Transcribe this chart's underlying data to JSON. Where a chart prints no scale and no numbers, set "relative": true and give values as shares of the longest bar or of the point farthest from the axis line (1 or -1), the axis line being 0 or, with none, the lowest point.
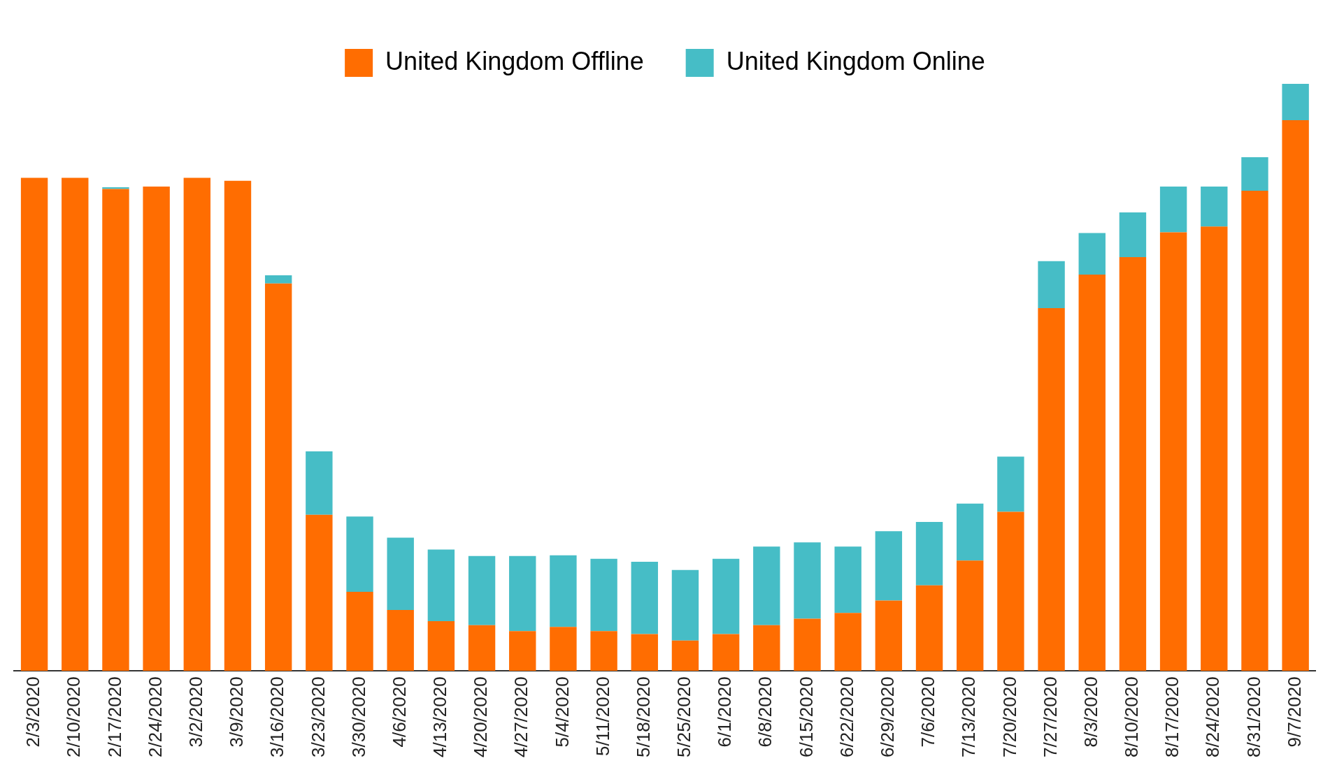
{
  "chart_data": {
    "type": "bar",
    "stacked": true,
    "relative": true,
    "legend": "top",
    "categories": [
      "2/3/2020",
      "2/10/2020",
      "2/17/2020",
      "2/24/2020",
      "3/2/2020",
      "3/9/2020",
      "3/16/2020",
      "3/23/2020",
      "3/30/2020",
      "4/6/2020",
      "4/13/2020",
      "4/20/2020",
      "4/27/2020",
      "5/4/2020",
      "5/11/2020",
      "5/18/2020",
      "5/25/2020",
      "6/1/2020",
      "6/8/2020",
      "6/15/2020",
      "6/22/2020",
      "6/29/2020",
      "7/6/2020",
      "7/13/2020",
      "7/20/2020",
      "7/27/2020",
      "8/3/2020",
      "8/10/2020",
      "8/17/2020",
      "8/24/2020",
      "8/31/2020",
      "9/7/2020"
    ],
    "series": [
      {
        "name": "United Kingdom Offline",
        "color": "#ff6d01",
        "values": [
          0.84,
          0.84,
          0.821,
          0.825,
          0.84,
          0.835,
          0.66,
          0.266,
          0.135,
          0.104,
          0.085,
          0.078,
          0.068,
          0.075,
          0.068,
          0.063,
          0.052,
          0.063,
          0.078,
          0.089,
          0.099,
          0.12,
          0.146,
          0.188,
          0.271,
          0.618,
          0.675,
          0.705,
          0.747,
          0.757,
          0.818,
          0.938
        ]
      },
      {
        "name": "United Kingdom Online",
        "color": "#46bdc6",
        "values": [
          0,
          0,
          0.003,
          0,
          0,
          0,
          0.014,
          0.108,
          0.128,
          0.123,
          0.122,
          0.118,
          0.128,
          0.122,
          0.123,
          0.123,
          0.12,
          0.128,
          0.134,
          0.13,
          0.113,
          0.118,
          0.108,
          0.097,
          0.094,
          0.08,
          0.071,
          0.076,
          0.078,
          0.068,
          0.057,
          0.062
        ]
      }
    ]
  }
}
